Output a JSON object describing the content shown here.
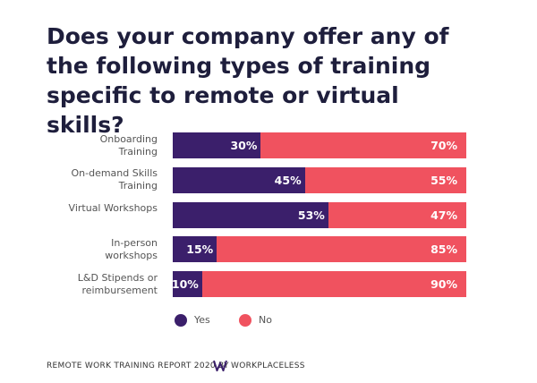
{
  "chart_data": {
    "type": "stacked-bar-horizontal",
    "title": "Does your company offer any of the following types of training specific to remote or virtual skills?",
    "categories": [
      "Onboarding Training",
      "On-demand Skills Training",
      "Virtual Workshops",
      "In-person workshops",
      "L&D Stipends or reimbursement"
    ],
    "series": [
      {
        "name": "Yes",
        "color": "#3b1f6b",
        "values": [
          30,
          45,
          53,
          15,
          10
        ],
        "value_labels": [
          "30%",
          "45%",
          "53%",
          "15%",
          "10%"
        ]
      },
      {
        "name": "No",
        "color": "#f0525f",
        "values": [
          70,
          55,
          47,
          85,
          90
        ],
        "value_labels": [
          "70%",
          "55%",
          "47%",
          "85%",
          "90%"
        ]
      }
    ],
    "footer": "REMOTE WORK TRAINING REPORT 2020 BY",
    "brand": "WORKPLACELESS"
  }
}
